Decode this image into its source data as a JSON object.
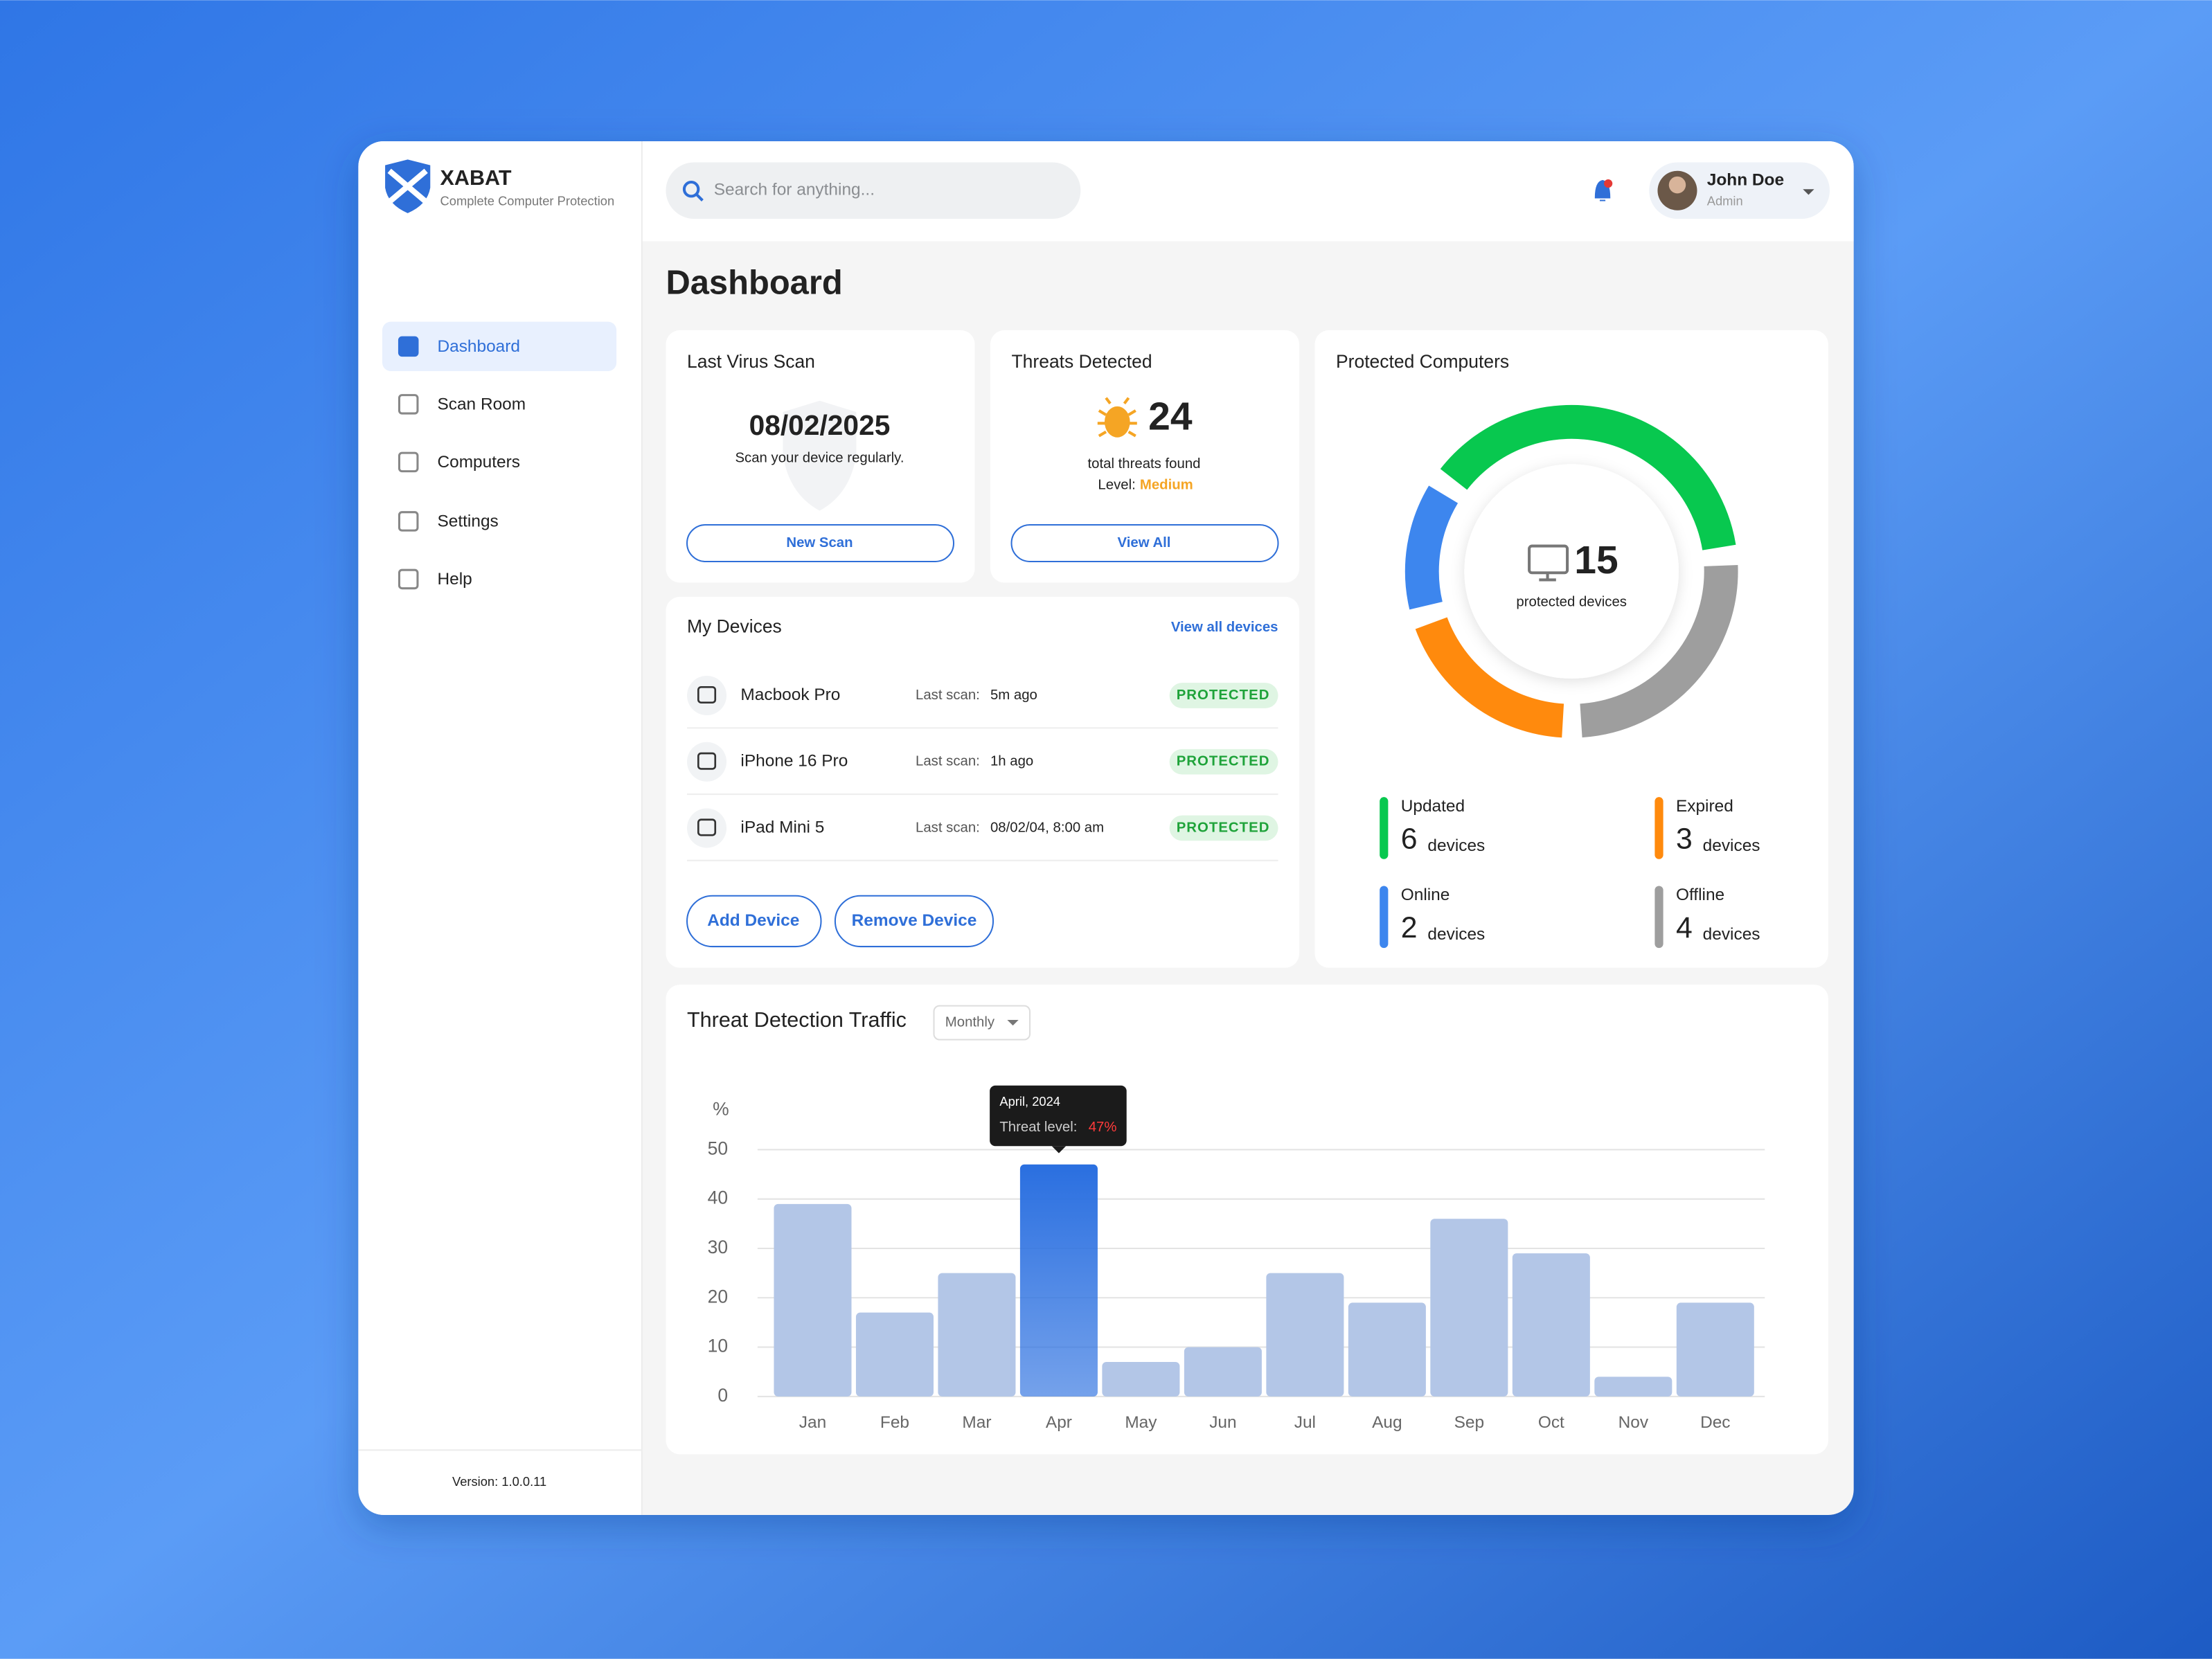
{
  "sidebar": {
    "brand": "XABAT",
    "tagline": "Complete Computer Protection",
    "nav": [
      "Dashboard",
      "Scan Room",
      "Computers",
      "Settings",
      "Help"
    ],
    "version": "Version: 1.0.0.11"
  },
  "header": {
    "search_placeholder": "Search for anything...",
    "user_name": "John Doe",
    "user_role": "Admin"
  },
  "page_title": "Dashboard",
  "last_scan": {
    "title": "Last Virus Scan",
    "date": "08/02/2025",
    "hint": "Scan your device regularly.",
    "button": "New Scan"
  },
  "threats": {
    "title": "Threats Detected",
    "count": 24,
    "caption": "total threats found",
    "level_label": "Level:",
    "level": "Medium",
    "button": "View All"
  },
  "devices": {
    "title": "My Devices",
    "link": "View all devices",
    "scan_label": "Last scan:",
    "rows": [
      {
        "name": "Macbook Pro",
        "last_scan": "5m ago",
        "status": "PROTECTED"
      },
      {
        "name": "iPhone 16 Pro",
        "last_scan": "1h ago",
        "status": "PROTECTED"
      },
      {
        "name": "iPad Mini 5",
        "last_scan": "08/02/04, 8:00 am",
        "status": "PROTECTED"
      }
    ],
    "buttons": [
      "Add Device",
      "Remove Device"
    ]
  },
  "traffic": {
    "title": "Threat Detection Traffic",
    "period": "Monthly"
  },
  "chart_data": [
    {
      "type": "bar",
      "y_label": "%",
      "categories": [
        "Jan",
        "Feb",
        "Mar",
        "Apr",
        "May",
        "Jun",
        "Jul",
        "Aug",
        "Sep",
        "Oct",
        "Nov",
        "Dec"
      ],
      "values": [
        39,
        17,
        25,
        47,
        7,
        10,
        25,
        19,
        36,
        29,
        4,
        19
      ],
      "value_labels": [
        null,
        null,
        null,
        "47%",
        null,
        null,
        null,
        null,
        null,
        null,
        null,
        null
      ],
      "tooltip_title": "April, 2024",
      "tooltip_label": "Threat level:",
      "ylim": [
        0,
        50
      ],
      "yticks": [
        0,
        10,
        20,
        30,
        40,
        50
      ],
      "grid": true,
      "color": "#b3c6e7",
      "highlight_color": "#2a6fe0"
    },
    {
      "type": "donut",
      "title": "Protected Computers",
      "categories": [
        "Updated",
        "Offline",
        "Expired",
        "Online"
      ],
      "values": [
        6,
        4,
        3,
        2
      ],
      "colors": [
        "#08c84f",
        "#9e9e9e",
        "#ff8a0d",
        "#3d86ee"
      ],
      "unit": "devices",
      "total": 15,
      "total_label": "protected devices"
    }
  ]
}
